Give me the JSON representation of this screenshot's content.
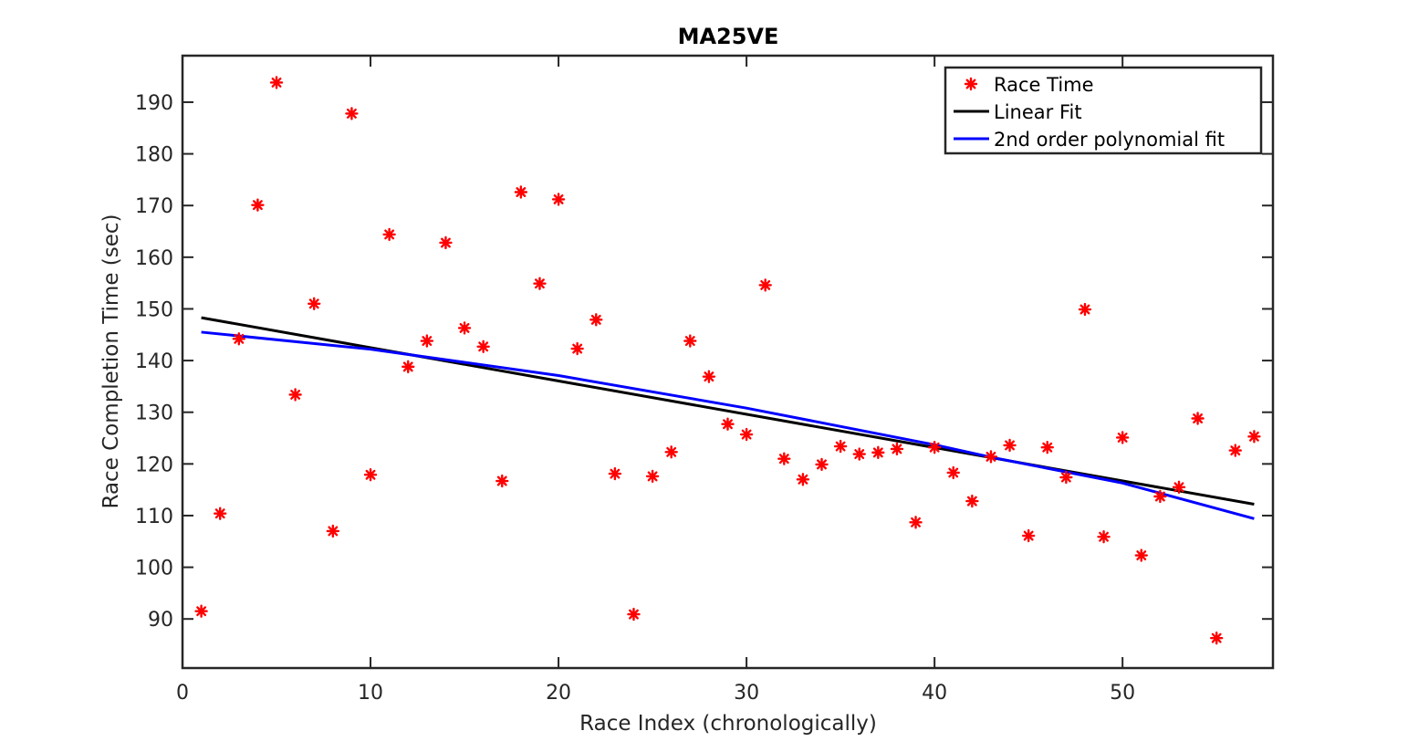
{
  "chart_data": {
    "type": "scatter",
    "title": "MA25VE",
    "xlabel": "Race Index (chronologically)",
    "ylabel": "Race Completion Time (sec)",
    "xlim": [
      0,
      58
    ],
    "ylim": [
      80.5,
      199
    ],
    "xticks": [
      0,
      10,
      20,
      30,
      40,
      50
    ],
    "yticks": [
      90,
      100,
      110,
      120,
      130,
      140,
      150,
      160,
      170,
      180,
      190
    ],
    "grid": false,
    "legend_position": "top-right",
    "series": [
      {
        "name": "Race Time",
        "kind": "markers",
        "marker": "asterisk",
        "color": "#ff0000",
        "x": [
          1,
          2,
          3,
          4,
          5,
          6,
          7,
          8,
          9,
          10,
          11,
          12,
          13,
          14,
          15,
          16,
          17,
          18,
          19,
          20,
          21,
          22,
          23,
          24,
          25,
          26,
          27,
          28,
          29,
          30,
          31,
          32,
          33,
          34,
          35,
          36,
          37,
          38,
          39,
          40,
          41,
          42,
          43,
          44,
          45,
          46,
          47,
          48,
          49,
          50,
          51,
          52,
          53,
          54,
          55,
          56,
          57
        ],
        "y": [
          91.5,
          110.4,
          144.2,
          170.1,
          193.8,
          133.4,
          151,
          107,
          187.8,
          117.9,
          164.4,
          138.8,
          143.8,
          162.8,
          146.3,
          142.7,
          116.7,
          172.6,
          154.9,
          171.2,
          142.3,
          147.9,
          118.1,
          90.9,
          117.6,
          122.3,
          143.8,
          136.9,
          127.7,
          125.7,
          154.6,
          121,
          117,
          119.9,
          123.4,
          121.9,
          122.2,
          122.9,
          108.7,
          123.2,
          118.3,
          112.8,
          121.4,
          123.6,
          106.1,
          123.2,
          117.4,
          149.9,
          105.9,
          125.1,
          102.3,
          113.7,
          115.5,
          128.8,
          86.3,
          122.6,
          125.3
        ]
      },
      {
        "name": "Linear Fit",
        "kind": "line",
        "color": "#000000",
        "x": [
          1,
          57
        ],
        "y": [
          148.3,
          112.2
        ]
      },
      {
        "name": "2nd order polynomial fit",
        "kind": "line",
        "color": "#0000ff",
        "x": [
          1,
          10,
          20,
          30,
          40,
          43,
          50,
          57
        ],
        "y": [
          145.5,
          142.2,
          137.1,
          130.8,
          123.7,
          121.3,
          116.3,
          109.4
        ]
      }
    ]
  }
}
